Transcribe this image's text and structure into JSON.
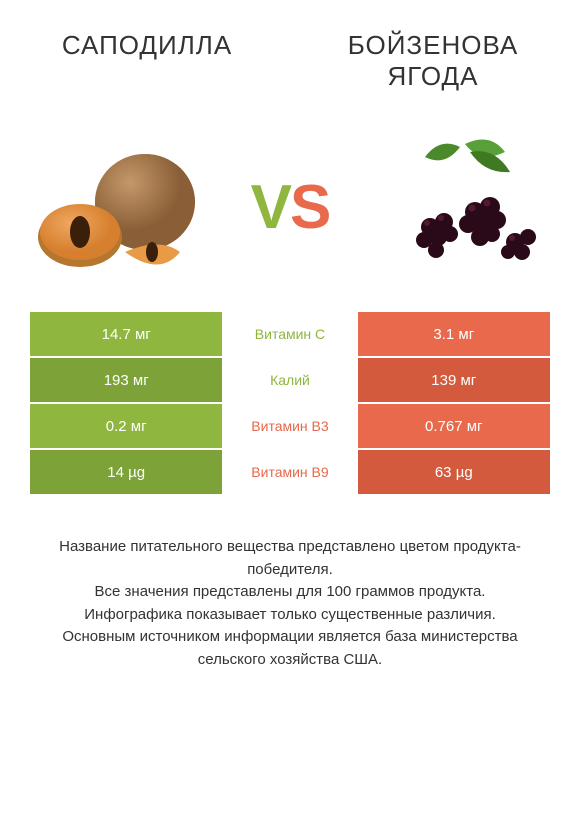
{
  "colors": {
    "left": "#8fb63f",
    "right": "#e8694b",
    "left_dark": "#7da237",
    "right_dark": "#d45a3d",
    "text": "#333333",
    "bg": "#ffffff"
  },
  "titles": {
    "left": "САПОДИЛЛА",
    "right": "БОЙЗЕНОВА ЯГОДА"
  },
  "vs": {
    "v": "V",
    "s": "S"
  },
  "rows": [
    {
      "left": "14.7 мг",
      "mid": "Витамин C",
      "right": "3.1 мг",
      "winner": "left"
    },
    {
      "left": "193 мг",
      "mid": "Калий",
      "right": "139 мг",
      "winner": "left"
    },
    {
      "left": "0.2 мг",
      "mid": "Витамин B3",
      "right": "0.767 мг",
      "winner": "right"
    },
    {
      "left": "14 µg",
      "mid": "Витамин B9",
      "right": "63 µg",
      "winner": "right"
    }
  ],
  "footer_lines": [
    "Название питательного вещества представлено цветом продукта-победителя.",
    "Все значения представлены для 100 граммов продукта.",
    "Инфографика показывает только существенные различия.",
    "Основным источником информации является база министерства сельского хозяйства США."
  ],
  "typography": {
    "title_fontsize": 26,
    "vs_fontsize": 62,
    "cell_fontsize": 15,
    "mid_fontsize": 14,
    "footer_fontsize": 15
  }
}
